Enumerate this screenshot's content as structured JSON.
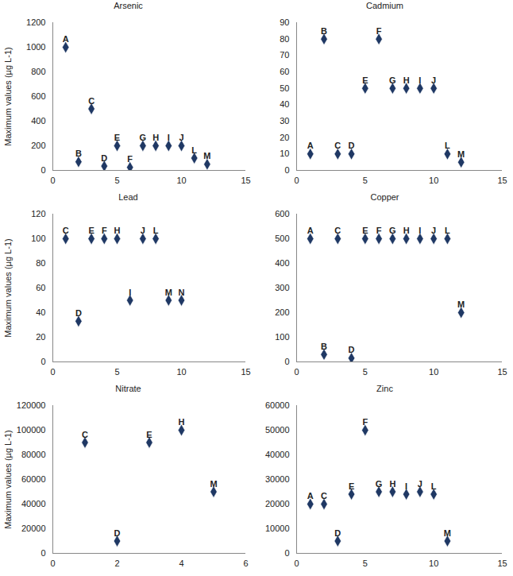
{
  "chart_data": [
    {
      "type": "scatter",
      "title": "Arsenic",
      "y_label": "Maximum values (µg L-1)",
      "marker": "diamond",
      "color": "#1f3864",
      "x": [
        1,
        2,
        3,
        4,
        5,
        6,
        7,
        8,
        9,
        10,
        11,
        12
      ],
      "values": [
        1000,
        70,
        500,
        35,
        200,
        25,
        200,
        200,
        200,
        200,
        100,
        50
      ],
      "labels": [
        "A",
        "B",
        "C",
        "D",
        "E",
        "F",
        "G",
        "H",
        "I",
        "J",
        "L",
        "M"
      ],
      "xlim": [
        0,
        15
      ],
      "xticks": [
        0,
        5,
        10,
        15
      ],
      "ylim": [
        0,
        1200
      ],
      "yticks": [
        0,
        200,
        400,
        600,
        800,
        1000,
        1200
      ]
    },
    {
      "type": "scatter",
      "title": "Cadmium",
      "marker": "diamond",
      "color": "#1f3864",
      "x": [
        1,
        2,
        3,
        4,
        5,
        6,
        7,
        8,
        9,
        10,
        11,
        12
      ],
      "values": [
        10,
        80,
        10,
        10,
        50,
        80,
        50,
        50,
        50,
        50,
        10,
        5
      ],
      "labels": [
        "A",
        "B",
        "C",
        "D",
        "E",
        "F",
        "G",
        "H",
        "I",
        "J",
        "L",
        "M"
      ],
      "xlim": [
        0,
        15
      ],
      "xticks": [
        0,
        5,
        10,
        15
      ],
      "ylim": [
        0,
        90
      ],
      "yticks": [
        0,
        10,
        20,
        30,
        40,
        50,
        60,
        70,
        80,
        90
      ]
    },
    {
      "type": "scatter",
      "title": "Lead",
      "y_label": "Maximum values (µg L-1)",
      "marker": "diamond",
      "color": "#1f3864",
      "x": [
        1,
        2,
        3,
        4,
        5,
        6,
        7,
        8,
        9,
        10
      ],
      "values": [
        100,
        33,
        100,
        100,
        100,
        50,
        100,
        100,
        50,
        50
      ],
      "labels": [
        "C",
        "D",
        "E",
        "F",
        "H",
        "I",
        "J",
        "L",
        "M",
        "N"
      ],
      "xlim": [
        0,
        15
      ],
      "xticks": [
        0,
        5,
        10,
        15
      ],
      "ylim": [
        0,
        120
      ],
      "yticks": [
        0,
        20,
        40,
        60,
        80,
        100,
        120
      ]
    },
    {
      "type": "scatter",
      "title": "Copper",
      "marker": "diamond",
      "color": "#1f3864",
      "x": [
        1,
        2,
        3,
        4,
        5,
        6,
        7,
        8,
        9,
        10,
        11,
        12
      ],
      "values": [
        500,
        30,
        500,
        15,
        500,
        500,
        500,
        500,
        500,
        500,
        500,
        200
      ],
      "labels": [
        "A",
        "B",
        "C",
        "D",
        "E",
        "F",
        "G",
        "H",
        "I",
        "J",
        "L",
        "M"
      ],
      "xlim": [
        0,
        15
      ],
      "xticks": [
        0,
        5,
        10,
        15
      ],
      "ylim": [
        0,
        600
      ],
      "yticks": [
        0,
        100,
        200,
        300,
        400,
        500,
        600
      ]
    },
    {
      "type": "scatter",
      "title": "Nitrate",
      "y_label": "Maximum values (µg L-1)",
      "marker": "diamond",
      "color": "#1f3864",
      "x": [
        1,
        2,
        3,
        4,
        5
      ],
      "values": [
        90000,
        10000,
        90000,
        100000,
        50000
      ],
      "labels": [
        "C",
        "D",
        "E",
        "H",
        "M"
      ],
      "xlim": [
        0,
        6
      ],
      "xticks": [
        0,
        2,
        4,
        6
      ],
      "ylim": [
        0,
        120000
      ],
      "yticks": [
        0,
        20000,
        40000,
        60000,
        80000,
        100000,
        120000
      ]
    },
    {
      "type": "scatter",
      "title": "Zinc",
      "marker": "diamond",
      "color": "#1f3864",
      "x": [
        1,
        2,
        3,
        4,
        5,
        6,
        7,
        8,
        9,
        10,
        11
      ],
      "values": [
        20000,
        20000,
        5000,
        24000,
        50000,
        25000,
        25000,
        24000,
        25000,
        24000,
        5000
      ],
      "labels": [
        "A",
        "C",
        "D",
        "E",
        "F",
        "G",
        "H",
        "I",
        "J",
        "L",
        "M"
      ],
      "xlim": [
        0,
        15
      ],
      "xticks": [
        0,
        5,
        10,
        15
      ],
      "ylim": [
        0,
        60000
      ],
      "yticks": [
        0,
        10000,
        20000,
        30000,
        40000,
        50000,
        60000
      ]
    }
  ]
}
